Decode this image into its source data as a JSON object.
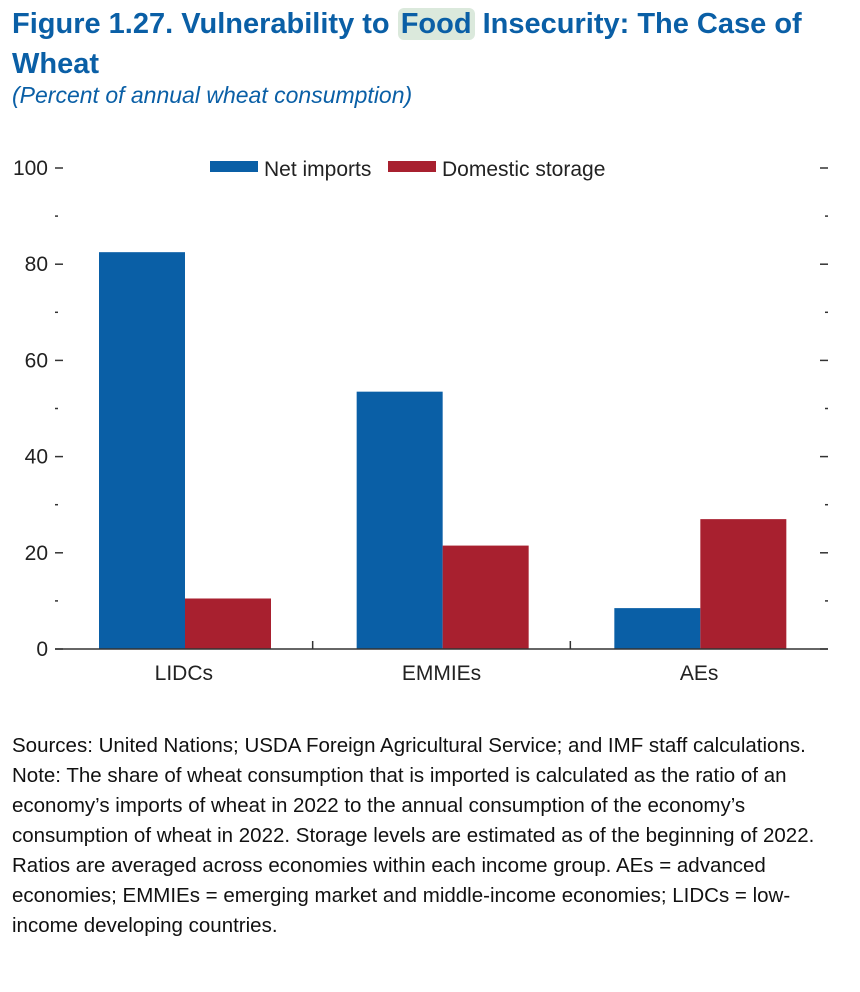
{
  "figure": {
    "title_prefix": "Figure 1.27.  Vulnerability to ",
    "title_highlight": "Food",
    "title_suffix": " Insecurity: The Case of Wheat",
    "subtitle": "(Percent of annual wheat consumption)"
  },
  "chart_data": {
    "type": "bar",
    "categories": [
      "LIDCs",
      "EMMIEs",
      "AEs"
    ],
    "series": [
      {
        "name": "Net imports",
        "color": "#0a5fa6",
        "values": [
          82.5,
          53.5,
          8.5
        ]
      },
      {
        "name": "Domestic storage",
        "color": "#a8202f",
        "values": [
          10.5,
          21.5,
          27
        ]
      }
    ],
    "ylim": [
      0,
      100
    ],
    "yticks": [
      0,
      20,
      40,
      60,
      80,
      100
    ],
    "ytick_labels": [
      "0",
      "20",
      "40",
      "60",
      "80",
      "100"
    ],
    "legend_position": "top-center",
    "xlabel": "",
    "ylabel": ""
  },
  "notes": {
    "sources": "Sources: United Nations; USDA Foreign Agricultural Service; and IMF staff calculations.",
    "note": "Note: The share of wheat consumption that is imported is calculated as the ratio of an economy’s imports of wheat in 2022 to the annual consumption of the economy’s consumption of wheat in 2022. Storage levels are estimated as of the beginning of 2022. Ratios are averaged across economies within each income group. AEs = advanced economies; EMMIEs = emerging market and middle-income economies; LIDCs = low-income developing countries."
  }
}
